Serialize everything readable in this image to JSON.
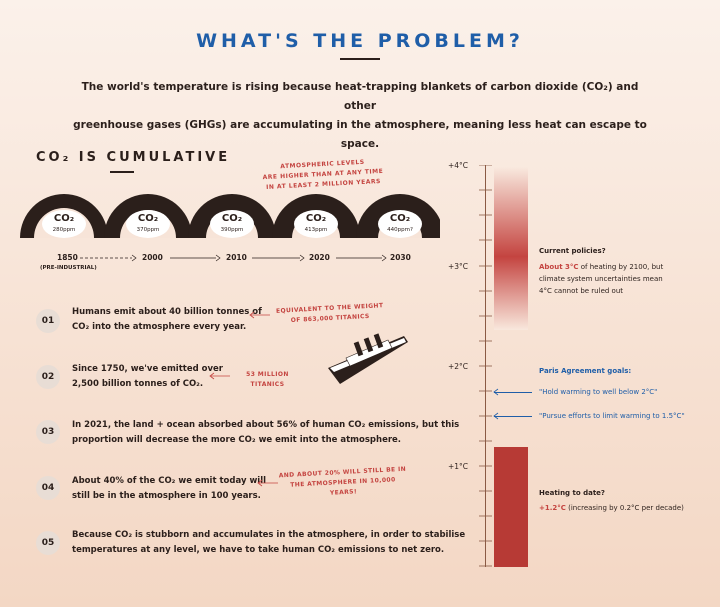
{
  "header": {
    "title": "WHAT'S THE PROBLEM?",
    "intro_line1": "The world's temperature is rising because heat-trapping blankets of carbon dioxide (CO₂) and other",
    "intro_line2": "greenhouse gases (GHGs) are accumulating in the atmosphere, meaning less heat can escape to space."
  },
  "cumulative": {
    "title": "CO₂ IS CUMULATIVE",
    "atmo_note_l1": "ATMOSPHERIC LEVELS",
    "atmo_note_l2": "ARE HIGHER THAN AT ANY TIME",
    "atmo_note_l3": "IN AT LEAST 2 MILLION YEARS",
    "clouds": [
      {
        "label": "CO₂",
        "ppm": "280ppm"
      },
      {
        "label": "CO₂",
        "ppm": "370ppm"
      },
      {
        "label": "CO₂",
        "ppm": "390ppm"
      },
      {
        "label": "CO₂",
        "ppm": "413ppm"
      },
      {
        "label": "CO₂",
        "ppm": "440ppm?"
      }
    ],
    "years": [
      "1850",
      "2000",
      "2010",
      "2020",
      "2030"
    ],
    "pre_industrial": "(PRE-INDUSTRIAL)"
  },
  "facts": [
    {
      "num": "01",
      "line1": "Humans emit about 40 billion tonnes of",
      "line2": "CO₂ into the atmosphere every year."
    },
    {
      "num": "02",
      "line1": "Since 1750, we've emitted over",
      "line2": "2,500 billion tonnes of CO₂."
    },
    {
      "num": "03",
      "line1": "In 2021, the land + ocean absorbed about 56% of human CO₂ emissions, but this",
      "line2": "proportion will decrease the more CO₂ we emit into the atmosphere."
    },
    {
      "num": "04",
      "line1": "About 40% of the CO₂ we emit today will",
      "line2": "still be in the atmosphere in 100 years."
    },
    {
      "num": "05",
      "line1": "Because CO₂ is stubborn and accumulates in the atmosphere, in order to stabilise",
      "line2": "temperatures at any level, we have to take human CO₂ emissions to net zero."
    }
  ],
  "notes": {
    "titanic_l1": "EQUIVALENT TO THE WEIGHT",
    "titanic_l2": "OF 863,000 TITANICS",
    "titanics_53": "53 MILLION TITANICS",
    "still_l1": "AND ABOUT 20% WILL STILL BE IN",
    "still_l2": "THE ATMOSPHERE IN 10,000 YEARS!"
  },
  "temperature": {
    "ticks": [
      "+4°C",
      "+3°C",
      "+2°C",
      "+1°C"
    ],
    "policy_title": "Current policies?",
    "policy_highlight": "About 3°C",
    "policy_l1_rest": " of heating by 2100, but",
    "policy_l2": "climate system uncertainties mean",
    "policy_l3": "4°C cannot be ruled out",
    "paris_title": "Paris Agreement goals:",
    "paris_goal1": "\"Hold warming to well below 2°C\"",
    "paris_goal2": "\"Pursue efforts to limit warming to 1.5°C\"",
    "today_title": "Heating to date?",
    "today_value": "+1.2°C",
    "today_rest": " (increasing by 0.2°C per decade)",
    "policy_fraction_c": 3.0,
    "today_c": 1.2
  },
  "colors": {
    "blue": "#1f5ea8",
    "red": "#c44440",
    "dark": "#2b1f1b"
  }
}
